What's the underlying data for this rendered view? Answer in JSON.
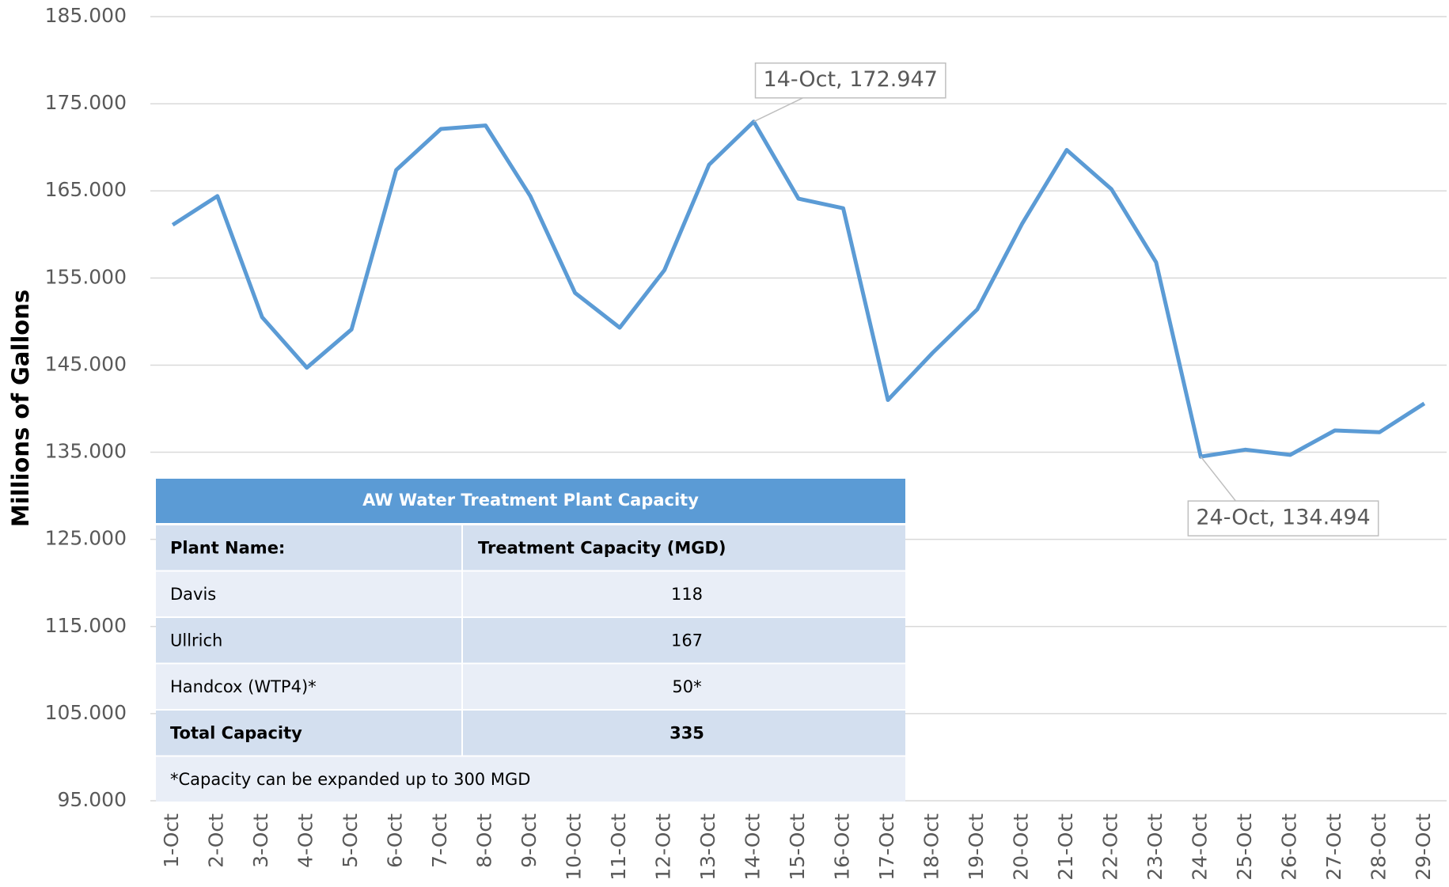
{
  "chart_data": {
    "type": "line",
    "y_label": "Millions of Gallons",
    "categories": [
      "1-Oct",
      "2-Oct",
      "3-Oct",
      "4-Oct",
      "5-Oct",
      "6-Oct",
      "7-Oct",
      "8-Oct",
      "9-Oct",
      "10-Oct",
      "11-Oct",
      "12-Oct",
      "13-Oct",
      "14-Oct",
      "15-Oct",
      "16-Oct",
      "17-Oct",
      "18-Oct",
      "19-Oct",
      "20-Oct",
      "21-Oct",
      "22-Oct",
      "23-Oct",
      "24-Oct",
      "25-Oct",
      "26-Oct",
      "27-Oct",
      "28-Oct",
      "29-Oct"
    ],
    "values": [
      161.1,
      164.4,
      150.5,
      144.7,
      149.1,
      167.4,
      172.1,
      172.5,
      164.4,
      153.3,
      149.3,
      155.9,
      168.0,
      172.947,
      164.1,
      163.0,
      141.0,
      146.4,
      151.4,
      161.2,
      169.7,
      165.2,
      156.8,
      134.494,
      135.3,
      134.7,
      137.5,
      137.3,
      140.6
    ],
    "value_labels": [
      null,
      null,
      null,
      null,
      null,
      null,
      null,
      null,
      null,
      null,
      null,
      null,
      null,
      "14-Oct, 172.947",
      null,
      null,
      null,
      null,
      null,
      null,
      null,
      null,
      null,
      "24-Oct, 134.494",
      null,
      null,
      null,
      null,
      null
    ],
    "color": "#5b9bd5",
    "ylim": [
      95,
      185
    ],
    "yticks": [
      {
        "value": 95,
        "label": "95.000"
      },
      {
        "value": 105,
        "label": "105.000"
      },
      {
        "value": 115,
        "label": "115.000"
      },
      {
        "value": 125,
        "label": "125.000"
      },
      {
        "value": 135,
        "label": "135.000"
      },
      {
        "value": 145,
        "label": "145.000"
      },
      {
        "value": 155,
        "label": "155.000"
      },
      {
        "value": 165,
        "label": "165.000"
      },
      {
        "value": 175,
        "label": "175.000"
      },
      {
        "value": 185,
        "label": "185.000"
      }
    ],
    "grid": true
  },
  "table": {
    "title": "AW Water Treatment Plant Capacity",
    "header": [
      "Plant Name:",
      "Treatment Capacity (MGD)"
    ],
    "rows": [
      [
        "Davis",
        "118"
      ],
      [
        "Ullrich",
        "167"
      ],
      [
        "Handcox (WTP4)*",
        "50*"
      ],
      [
        "Total Capacity",
        "335"
      ]
    ],
    "footnote": "*Capacity can be expanded up to 300 MGD"
  }
}
